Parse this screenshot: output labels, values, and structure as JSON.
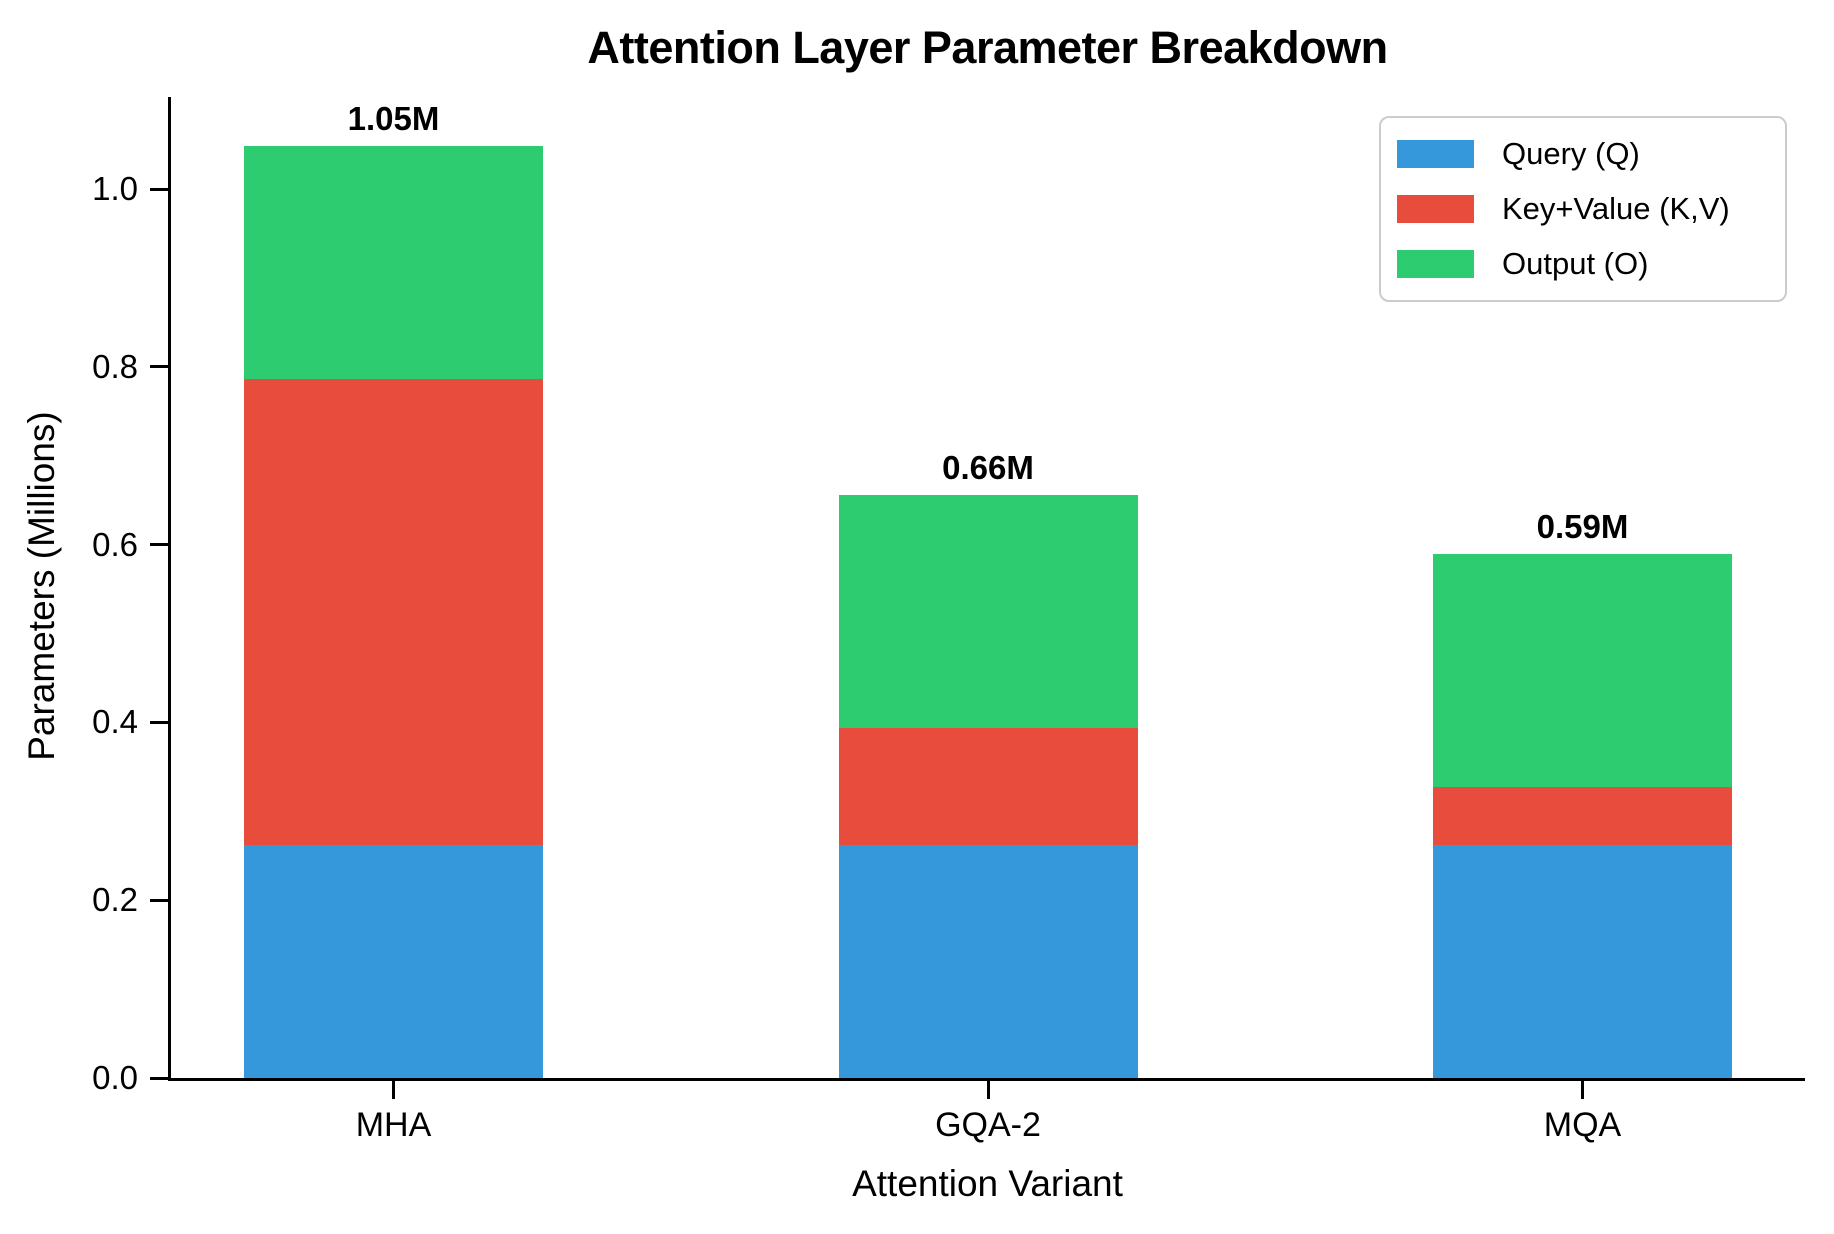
{
  "chart_data": {
    "type": "bar",
    "stacked": true,
    "title": "Attention Layer Parameter Breakdown",
    "xlabel": "Attention Variant",
    "ylabel": "Parameters (Millions)",
    "categories": [
      "MHA",
      "GQA-2",
      "MQA"
    ],
    "series": [
      {
        "name": "Query (Q)",
        "color": "#3498db",
        "values": [
          0.262144,
          0.262144,
          0.262144
        ]
      },
      {
        "name": "Key+Value (K,V)",
        "color": "#e74c3c",
        "values": [
          0.524288,
          0.131072,
          0.065536
        ]
      },
      {
        "name": "Output (O)",
        "color": "#2ecc71",
        "values": [
          0.262144,
          0.262144,
          0.262144
        ]
      }
    ],
    "totals": [
      1.048576,
      0.65536,
      0.589824
    ],
    "total_labels": [
      "1.05M",
      "0.66M",
      "0.59M"
    ],
    "yticks": [
      0.0,
      0.2,
      0.4,
      0.6,
      0.8,
      1.0
    ],
    "ytick_labels": [
      "0.0",
      "0.2",
      "0.4",
      "0.6",
      "0.8",
      "1.0"
    ],
    "ylim": [
      0,
      1.1
    ],
    "grid": false,
    "legend_position": "upper right",
    "axis_color": "#000000",
    "text_color": "#000000"
  }
}
